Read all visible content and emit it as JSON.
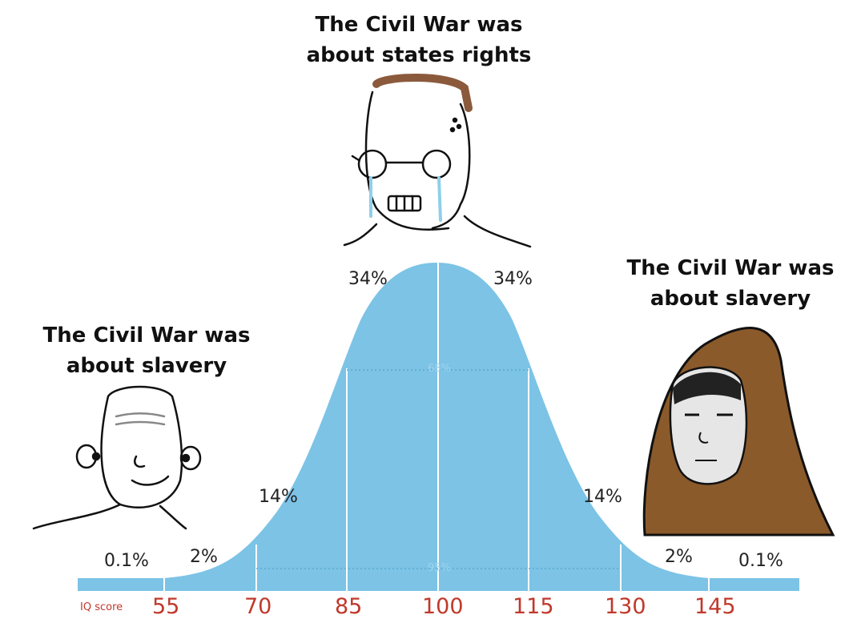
{
  "captions": {
    "top": [
      "The Civil War was",
      "about states rights"
    ],
    "left": [
      "The Civil War was",
      "about slavery"
    ],
    "right": [
      "The Civil War was",
      "about slavery"
    ]
  },
  "percentages": {
    "far_left": "0.1%",
    "left_2": "2%",
    "left_14": "14%",
    "left_34": "34%",
    "right_34": "34%",
    "right_14": "14%",
    "right_2": "2%",
    "far_right": "0.1%",
    "inner_68": "68%",
    "inner_95": "95%"
  },
  "axis": {
    "label": "IQ score",
    "ticks": [
      "55",
      "70",
      "85",
      "100",
      "115",
      "130",
      "145"
    ]
  },
  "colors": {
    "curve": "#7cc3e6",
    "tick_text": "#c0392b",
    "hood": "#8b5a2b"
  }
}
